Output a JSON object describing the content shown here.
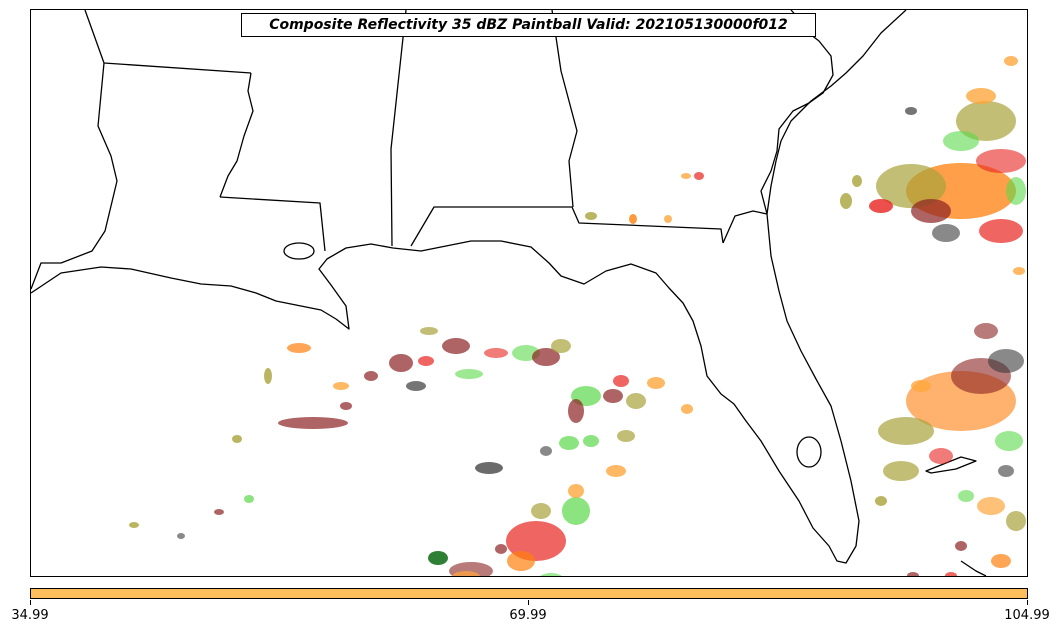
{
  "title": "Composite Reflectivity 35 dBZ Paintball Valid: 202105130000f012",
  "colorbar": {
    "color": "#ffbe5c",
    "ticks": [
      "34.99",
      "69.99",
      "104.99"
    ]
  },
  "colors": {
    "member_palette": [
      "#e8231f",
      "#ff7f0e",
      "#5bd84a",
      "#a8a23a",
      "#8b2222",
      "#3a3a3a",
      "#0b6a12",
      "#ffa63d"
    ]
  }
}
